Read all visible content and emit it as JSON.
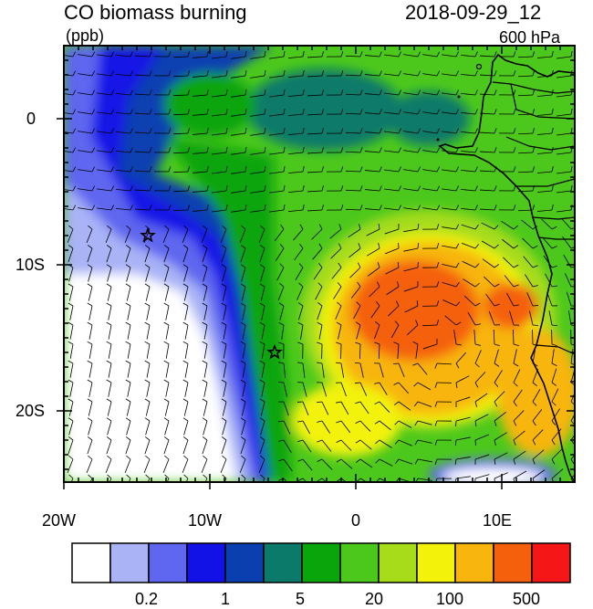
{
  "header": {
    "title": "CO biomass burning",
    "datetime": "2018-09-29_12",
    "units": "(ppb)",
    "level": "600 hPa"
  },
  "axes": {
    "lat_labels": [
      "0",
      "10S",
      "20S"
    ],
    "lon_labels": [
      "20W",
      "10W",
      "0",
      "10E"
    ]
  },
  "colorbar": {
    "colors": [
      "#ffffff",
      "#a9b3f6",
      "#5f66ef",
      "#1212e6",
      "#0b3fb0",
      "#0b7a6a",
      "#0aa50a",
      "#4cc81c",
      "#a6dc1a",
      "#f2f20a",
      "#f7b50d",
      "#f5600d",
      "#f51717"
    ],
    "labels": [
      "0.2",
      "1",
      "5",
      "20",
      "100",
      "500"
    ]
  },
  "markers": [
    {
      "name": "star-marker-north",
      "lon": -14.5,
      "lat": -8.0
    },
    {
      "name": "star-marker-south",
      "lon": -5.7,
      "lat": -16.0
    }
  ]
}
